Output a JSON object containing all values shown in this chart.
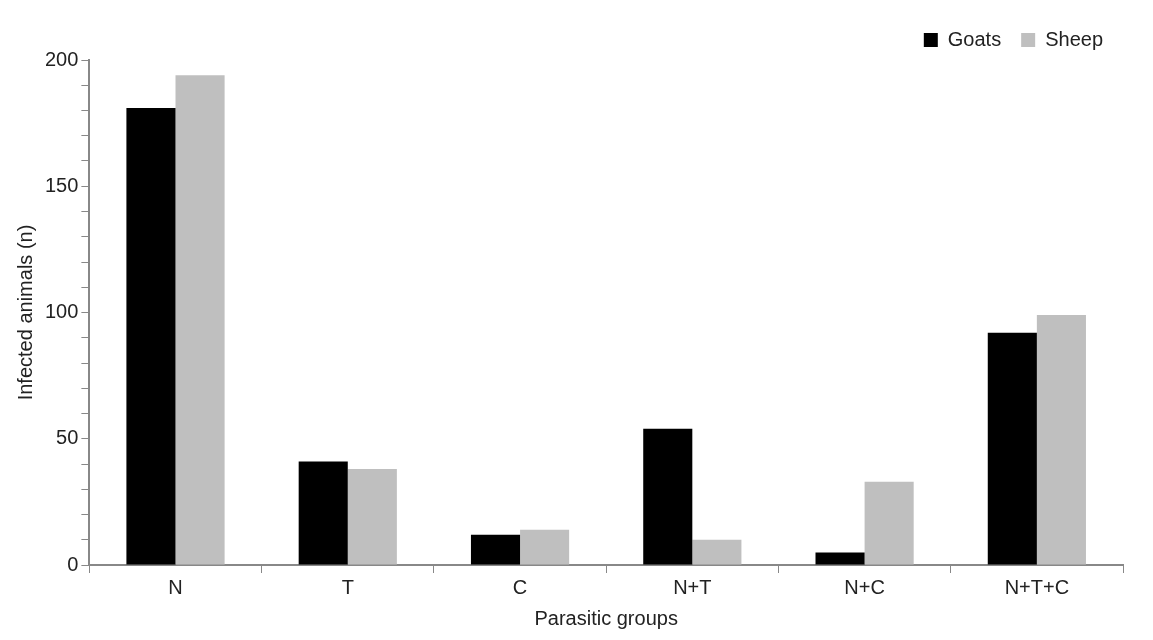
{
  "chart_data": {
    "type": "bar",
    "xlabel": "Parasitic groups",
    "ylabel": "Infected animals (n)",
    "categories": [
      "N",
      "T",
      "C",
      "N+T",
      "N+C",
      "N+T+C"
    ],
    "series": [
      {
        "name": "Goats",
        "color": "#000000",
        "values": [
          181,
          41,
          12,
          54,
          5,
          92
        ]
      },
      {
        "name": "Sheep",
        "color": "#bfbfbf",
        "values": [
          194,
          38,
          14,
          10,
          33,
          99
        ]
      }
    ],
    "ylim": [
      0,
      200
    ],
    "yticks": [
      0,
      {
        "value": 10,
        "label": null
      },
      {
        "value": 20,
        "label": null
      },
      {
        "value": 30,
        "label": null
      },
      {
        "value": 40,
        "label": null
      },
      50,
      {
        "value": 60,
        "label": null
      },
      {
        "value": 70,
        "label": null
      },
      {
        "value": 80,
        "label": null
      },
      {
        "value": 90,
        "label": null
      },
      100,
      {
        "value": 110,
        "label": null
      },
      {
        "value": 120,
        "label": null
      },
      {
        "value": 130,
        "label": null
      },
      {
        "value": 140,
        "label": null
      },
      150,
      {
        "value": 160,
        "label": null
      },
      {
        "value": 170,
        "label": null
      },
      {
        "value": 180,
        "label": null
      },
      {
        "value": 190,
        "label": null
      },
      200
    ],
    "grid": false,
    "legend": "top right"
  }
}
